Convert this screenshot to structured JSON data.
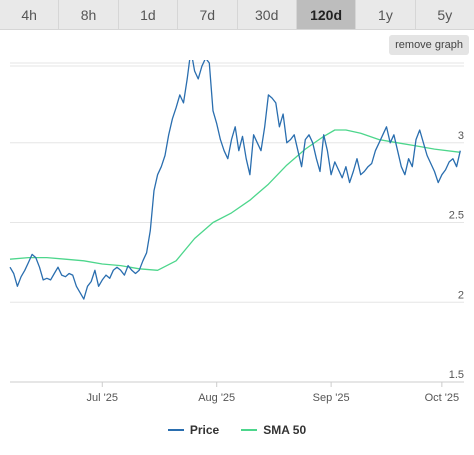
{
  "tabs": [
    {
      "label": "4h",
      "active": false
    },
    {
      "label": "8h",
      "active": false
    },
    {
      "label": "1d",
      "active": false
    },
    {
      "label": "7d",
      "active": false
    },
    {
      "label": "30d",
      "active": false
    },
    {
      "label": "120d",
      "active": true
    },
    {
      "label": "1y",
      "active": false
    },
    {
      "label": "5y",
      "active": false
    }
  ],
  "remove_graph_label": "remove graph",
  "legend": {
    "price": "Price",
    "sma": "SMA 50"
  },
  "colors": {
    "price": "#2a6eaf",
    "sma": "#4dd68c",
    "grid": "#e6e6e6",
    "axis_text": "#555555"
  },
  "chart_data": {
    "type": "line",
    "ylim": [
      1.5,
      3.5
    ],
    "yticks": [
      "3.5",
      "3",
      "2.5",
      "2",
      "1.5"
    ],
    "xticks": [
      {
        "label": "Jul '25",
        "x": 25
      },
      {
        "label": "Aug '25",
        "x": 56
      },
      {
        "label": "Sep '25",
        "x": 87
      },
      {
        "label": "Oct '25",
        "x": 117
      }
    ],
    "xlim": [
      0,
      123
    ],
    "grid": true,
    "legend_position": "bottom",
    "series": [
      {
        "name": "Price",
        "x": [
          0,
          1,
          2,
          3,
          4,
          5,
          6,
          7,
          8,
          9,
          10,
          11,
          12,
          13,
          14,
          15,
          16,
          17,
          18,
          19,
          20,
          21,
          22,
          23,
          24,
          25,
          26,
          27,
          28,
          29,
          30,
          31,
          32,
          33,
          34,
          35,
          36,
          37,
          38,
          39,
          40,
          41,
          42,
          43,
          44,
          45,
          46,
          47,
          48,
          49,
          50,
          51,
          52,
          53,
          54,
          55,
          56,
          57,
          58,
          59,
          60,
          61,
          62,
          63,
          64,
          65,
          66,
          67,
          68,
          69,
          70,
          71,
          72,
          73,
          74,
          75,
          76,
          77,
          78,
          79,
          80,
          81,
          82,
          83,
          84,
          85,
          86,
          87,
          88,
          89,
          90,
          91,
          92,
          93,
          94,
          95,
          96,
          97,
          98,
          99,
          100,
          101,
          102,
          103,
          104,
          105,
          106,
          107,
          108,
          109,
          110,
          111,
          112,
          113,
          114,
          115,
          116,
          117,
          118,
          119,
          120,
          121,
          122
        ],
        "values": [
          2.22,
          2.18,
          2.1,
          2.16,
          2.2,
          2.25,
          2.3,
          2.28,
          2.22,
          2.14,
          2.15,
          2.14,
          2.18,
          2.22,
          2.17,
          2.16,
          2.18,
          2.17,
          2.1,
          2.06,
          2.02,
          2.1,
          2.13,
          2.2,
          2.1,
          2.14,
          2.17,
          2.15,
          2.2,
          2.22,
          2.2,
          2.17,
          2.23,
          2.2,
          2.18,
          2.2,
          2.26,
          2.31,
          2.45,
          2.7,
          2.8,
          2.85,
          2.92,
          3.05,
          3.15,
          3.22,
          3.3,
          3.25,
          3.4,
          3.58,
          3.45,
          3.4,
          3.48,
          3.53,
          3.5,
          3.2,
          3.12,
          3.02,
          2.95,
          2.9,
          3.02,
          3.1,
          2.95,
          3.04,
          2.9,
          2.8,
          3.05,
          3.0,
          2.95,
          3.1,
          3.3,
          3.28,
          3.25,
          3.1,
          3.18,
          3.0,
          3.02,
          3.05,
          2.95,
          2.85,
          3.02,
          3.05,
          3.0,
          2.9,
          2.82,
          3.05,
          2.95,
          2.8,
          2.88,
          2.83,
          2.78,
          2.85,
          2.75,
          2.82,
          2.9,
          2.8,
          2.82,
          2.85,
          2.87,
          2.95,
          3.0,
          3.05,
          3.1,
          3.0,
          3.05,
          2.95,
          2.85,
          2.8,
          2.9,
          2.85,
          3.02,
          3.08,
          3.0,
          2.92,
          2.87,
          2.82,
          2.75,
          2.8,
          2.83,
          2.88,
          2.9,
          2.85,
          2.95
        ]
      },
      {
        "name": "SMA 50",
        "x": [
          0,
          5,
          10,
          15,
          20,
          25,
          30,
          35,
          40,
          45,
          50,
          55,
          60,
          65,
          70,
          75,
          80,
          85,
          88,
          91,
          95,
          100,
          105,
          110,
          115,
          122
        ],
        "values": [
          2.27,
          2.28,
          2.28,
          2.27,
          2.26,
          2.24,
          2.23,
          2.21,
          2.2,
          2.26,
          2.4,
          2.5,
          2.56,
          2.64,
          2.74,
          2.86,
          2.96,
          3.04,
          3.08,
          3.08,
          3.06,
          3.02,
          3.0,
          2.98,
          2.96,
          2.94
        ]
      }
    ]
  }
}
